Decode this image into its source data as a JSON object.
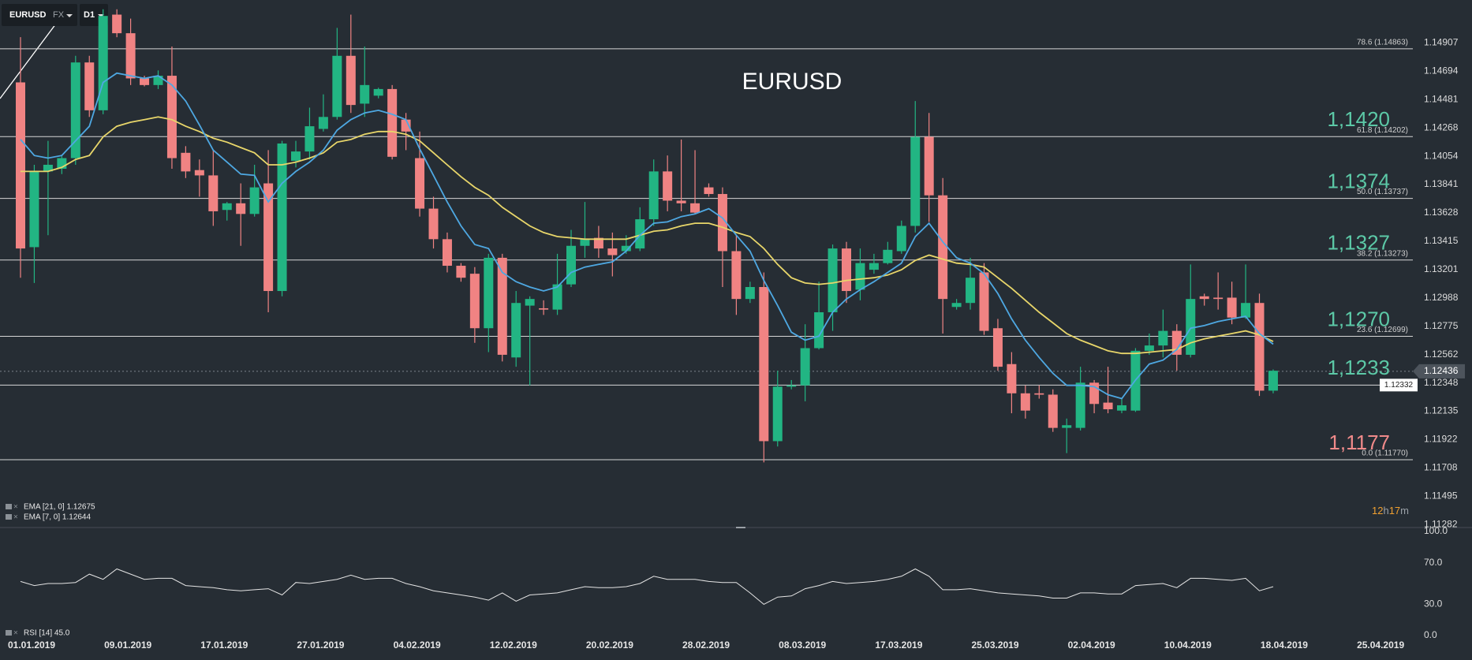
{
  "toolbar": {
    "symbol": "EURUSD",
    "market": "FX",
    "timeframe": "D1"
  },
  "chart_data": [
    {
      "type": "candlestick",
      "title": "EURUSD",
      "up_color": "#22b583",
      "down_color": "#f08383",
      "open": [
        1.1461,
        1.1337,
        1.1394,
        1.1396,
        1.1404,
        1.1476,
        1.144,
        1.1512,
        1.1498,
        1.1464,
        1.1459,
        1.1466,
        1.1408,
        1.1395,
        1.1391,
        1.1365,
        1.137,
        1.1362,
        1.1385,
        1.1304,
        1.1402,
        1.1409,
        1.1426,
        1.1435,
        1.1481,
        1.1445,
        1.1451,
        1.1456,
        1.1433,
        1.1404,
        1.1366,
        1.1343,
        1.1323,
        1.1317,
        1.1276,
        1.1329,
        1.1254,
        1.1293,
        1.1291,
        1.129,
        1.1309,
        1.1338,
        1.1344,
        1.1336,
        1.1334,
        1.1336,
        1.1358,
        1.1394,
        1.1372,
        1.137,
        1.1382,
        1.1377,
        1.1334,
        1.1298,
        1.1307,
        1.1191,
        1.1232,
        1.1233,
        1.1261,
        1.1288,
        1.1336,
        1.1305,
        1.132,
        1.1325,
        1.1334,
        1.1353,
        1.142,
        1.1376,
        1.1292,
        1.1295,
        1.1318,
        1.1276,
        1.1249,
        1.1227,
        1.1227,
        1.1226,
        1.1201,
        1.1201,
        1.1235,
        1.122,
        1.1214,
        1.1214,
        1.1259,
        1.1263,
        1.1274,
        1.1256,
        1.13,
        1.1299,
        1.1299,
        1.1284,
        1.1295,
        1.1229
      ],
      "high": [
        1.1495,
        1.1399,
        1.1417,
        1.1406,
        1.1481,
        1.1481,
        1.1516,
        1.1516,
        1.1509,
        1.1466,
        1.147,
        1.1488,
        1.1413,
        1.1403,
        1.141,
        1.1371,
        1.1385,
        1.1399,
        1.141,
        1.1417,
        1.1417,
        1.1442,
        1.1452,
        1.1502,
        1.1512,
        1.1488,
        1.1457,
        1.1459,
        1.1438,
        1.1424,
        1.1375,
        1.1348,
        1.1325,
        1.1322,
        1.1332,
        1.1332,
        1.1304,
        1.13,
        1.1297,
        1.1332,
        1.135,
        1.1371,
        1.1353,
        1.1348,
        1.1346,
        1.1367,
        1.1403,
        1.1406,
        1.1418,
        1.141,
        1.1385,
        1.1382,
        1.1346,
        1.1311,
        1.1318,
        1.1244,
        1.1237,
        1.1279,
        1.1311,
        1.1339,
        1.1341,
        1.1336,
        1.1332,
        1.1341,
        1.1357,
        1.1447,
        1.1438,
        1.1389,
        1.1298,
        1.1329,
        1.1325,
        1.1283,
        1.1258,
        1.1233,
        1.1233,
        1.123,
        1.1208,
        1.1247,
        1.1237,
        1.1247,
        1.1223,
        1.1261,
        1.1272,
        1.129,
        1.1279,
        1.1324,
        1.1302,
        1.1318,
        1.1311,
        1.1324,
        1.1302,
        1.1245
      ],
      "low": [
        1.1314,
        1.131,
        1.1346,
        1.1392,
        1.1399,
        1.1435,
        1.1437,
        1.1495,
        1.1459,
        1.1458,
        1.1456,
        1.1396,
        1.1389,
        1.1375,
        1.1353,
        1.1357,
        1.1338,
        1.136,
        1.1288,
        1.13,
        1.1397,
        1.1403,
        1.1424,
        1.1433,
        1.1438,
        1.1435,
        1.1449,
        1.1403,
        1.141,
        1.136,
        1.1336,
        1.1318,
        1.1311,
        1.1265,
        1.1258,
        1.1251,
        1.1247,
        1.1233,
        1.1286,
        1.1286,
        1.1307,
        1.1329,
        1.1329,
        1.1315,
        1.1332,
        1.1334,
        1.1353,
        1.1364,
        1.1364,
        1.1362,
        1.1375,
        1.1307,
        1.1286,
        1.1295,
        1.1175,
        1.1187,
        1.123,
        1.1221,
        1.126,
        1.1274,
        1.1295,
        1.1297,
        1.1317,
        1.1324,
        1.1332,
        1.1348,
        1.1356,
        1.1272,
        1.129,
        1.129,
        1.1271,
        1.1244,
        1.1212,
        1.1208,
        1.1223,
        1.1198,
        1.1182,
        1.1199,
        1.1212,
        1.1212,
        1.1212,
        1.1213,
        1.1256,
        1.1254,
        1.1244,
        1.1254,
        1.1293,
        1.129,
        1.1279,
        1.1283,
        1.1225,
        1.1227
      ],
      "close": [
        1.1336,
        1.1394,
        1.1399,
        1.1404,
        1.1476,
        1.144,
        1.1511,
        1.1498,
        1.1464,
        1.1459,
        1.1466,
        1.1404,
        1.1394,
        1.1391,
        1.1364,
        1.137,
        1.1362,
        1.1382,
        1.1304,
        1.1415,
        1.1409,
        1.1428,
        1.1435,
        1.1481,
        1.1444,
        1.1459,
        1.1456,
        1.1405,
        1.1424,
        1.1366,
        1.1343,
        1.1323,
        1.1314,
        1.1276,
        1.1329,
        1.1256,
        1.1295,
        1.1298,
        1.129,
        1.1309,
        1.1338,
        1.1343,
        1.1336,
        1.1331,
        1.1338,
        1.1358,
        1.1394,
        1.1372,
        1.137,
        1.1363,
        1.1377,
        1.1334,
        1.1298,
        1.1307,
        1.1191,
        1.1232,
        1.1233,
        1.1261,
        1.1288,
        1.1336,
        1.1304,
        1.1325,
        1.1325,
        1.1335,
        1.1353,
        1.142,
        1.1376,
        1.1298,
        1.1295,
        1.1314,
        1.1274,
        1.1247,
        1.1227,
        1.1214,
        1.1226,
        1.1201,
        1.1203,
        1.1235,
        1.1219,
        1.1215,
        1.1218,
        1.1259,
        1.1263,
        1.1274,
        1.1256,
        1.1298,
        1.1298,
        1.1298,
        1.1284,
        1.1295,
        1.1229,
        1.1244
      ],
      "series": [
        {
          "name": "EMA [21, 0] 1.12675",
          "color": "#e8d66a",
          "values": [
            1.1394,
            1.1394,
            1.1394,
            1.1397,
            1.1403,
            1.1406,
            1.142,
            1.1428,
            1.1431,
            1.1433,
            1.1435,
            1.1433,
            1.1428,
            1.1424,
            1.1419,
            1.1416,
            1.1412,
            1.1408,
            1.1399,
            1.1399,
            1.1401,
            1.1404,
            1.1408,
            1.1416,
            1.1418,
            1.1422,
            1.1424,
            1.1424,
            1.1422,
            1.1417,
            1.1408,
            1.1399,
            1.139,
            1.1382,
            1.1376,
            1.1367,
            1.136,
            1.1353,
            1.1348,
            1.1345,
            1.1344,
            1.1343,
            1.1343,
            1.1343,
            1.1343,
            1.1346,
            1.1349,
            1.135,
            1.1353,
            1.1355,
            1.1355,
            1.1352,
            1.1348,
            1.1345,
            1.1336,
            1.1324,
            1.1314,
            1.131,
            1.1309,
            1.131,
            1.1312,
            1.1313,
            1.1314,
            1.1316,
            1.132,
            1.1327,
            1.1331,
            1.1328,
            1.1325,
            1.1324,
            1.1322,
            1.1314,
            1.1306,
            1.1297,
            1.1288,
            1.128,
            1.1272,
            1.1267,
            1.1263,
            1.1259,
            1.1257,
            1.1257,
            1.1258,
            1.1259,
            1.126,
            1.1265,
            1.1268,
            1.127,
            1.1272,
            1.1274,
            1.1271,
            1.1266
          ]
        },
        {
          "name": "EMA [7, 0] 1.12644",
          "color": "#4ea8e2",
          "values": [
            1.1418,
            1.1406,
            1.1404,
            1.1406,
            1.1417,
            1.1428,
            1.1461,
            1.1468,
            1.1466,
            1.1464,
            1.1466,
            1.1459,
            1.1447,
            1.1429,
            1.141,
            1.1401,
            1.1392,
            1.1391,
            1.1371,
            1.1385,
            1.1394,
            1.1401,
            1.141,
            1.1425,
            1.1433,
            1.1438,
            1.144,
            1.1437,
            1.1433,
            1.1411,
            1.1391,
            1.1371,
            1.1353,
            1.1339,
            1.1336,
            1.1318,
            1.1311,
            1.1307,
            1.1304,
            1.1307,
            1.1318,
            1.1322,
            1.1324,
            1.1326,
            1.1334,
            1.1346,
            1.1355,
            1.1356,
            1.136,
            1.1362,
            1.1366,
            1.1359,
            1.1346,
            1.1334,
            1.1312,
            1.1293,
            1.1273,
            1.1267,
            1.127,
            1.1288,
            1.1298,
            1.1305,
            1.1311,
            1.1318,
            1.1325,
            1.1345,
            1.1355,
            1.1341,
            1.1329,
            1.1325,
            1.1317,
            1.1302,
            1.1283,
            1.1267,
            1.1254,
            1.1242,
            1.1233,
            1.1233,
            1.1232,
            1.1226,
            1.1223,
            1.1237,
            1.1249,
            1.1252,
            1.126,
            1.1276,
            1.1278,
            1.1281,
            1.1283,
            1.1285,
            1.1272,
            1.1264
          ]
        }
      ],
      "ylim": [
        1.1126,
        1.1523
      ],
      "yticks": [
        1.14907,
        1.14694,
        1.14481,
        1.14268,
        1.14054,
        1.13841,
        1.13628,
        1.13415,
        1.13201,
        1.12988,
        1.12775,
        1.12562,
        1.12348,
        1.12135,
        1.11922,
        1.11708,
        1.11495,
        1.11282
      ],
      "levels": [
        {
          "value": 1.14863,
          "label": "78.6 (1.14863)"
        },
        {
          "value": 1.14202,
          "label": "61.8 (1.14202)",
          "note": "1,1420",
          "note_color": "#5cc9a7"
        },
        {
          "value": 1.13737,
          "label": "50.0 (1.13737)",
          "note": "1,1374",
          "note_color": "#5cc9a7"
        },
        {
          "value": 1.13273,
          "label": "38.2 (1.13273)",
          "note": "1,1327",
          "note_color": "#5cc9a7"
        },
        {
          "value": 1.12699,
          "label": "23.6 (1.12699)",
          "note": "1,1270",
          "note_color": "#5cc9a7"
        },
        {
          "value": 1.12332,
          "boxed": true,
          "note": "1,1233",
          "note_color": "#5cc9a7"
        },
        {
          "value": 1.1177,
          "label": "0.0 (1.11770)",
          "note": "1,1177",
          "note_color": "#f08a8a"
        }
      ],
      "last_price": 1.12436,
      "x_labels": [
        "01.01.2019",
        "09.01.2019",
        "17.01.2019",
        "27.01.2019",
        "04.02.2019",
        "12.02.2019",
        "20.02.2019",
        "28.02.2019",
        "08.03.2019",
        "17.03.2019",
        "25.03.2019",
        "02.04.2019",
        "10.04.2019",
        "18.04.2019",
        "25.04.2019"
      ],
      "timer": [
        "12",
        "h",
        "17",
        "m"
      ]
    },
    {
      "type": "line",
      "name": "RSI [14] 45.0",
      "color": "#e4e4e4",
      "values": [
        52,
        48,
        50,
        50,
        51,
        59,
        54,
        64,
        59,
        54,
        55,
        55,
        48,
        47,
        46,
        44,
        43,
        44,
        45,
        39,
        51,
        50,
        52,
        54,
        58,
        54,
        55,
        55,
        50,
        47,
        43,
        41,
        39,
        37,
        34,
        41,
        33,
        39,
        40,
        41,
        44,
        47,
        46,
        46,
        47,
        50,
        57,
        54,
        54,
        54,
        52,
        51,
        51,
        41,
        30,
        37,
        38,
        45,
        48,
        52,
        50,
        51,
        52,
        54,
        57,
        64,
        57,
        44,
        44,
        45,
        43,
        41,
        40,
        39,
        38,
        36,
        36,
        41,
        41,
        40,
        40,
        48,
        49,
        50,
        46,
        55,
        55,
        54,
        53,
        55,
        43,
        47
      ],
      "ylim": [
        0,
        100
      ],
      "yticks": [
        {
          "value": 100,
          "label": "100.0"
        },
        {
          "value": 70,
          "label": "70.0"
        },
        {
          "value": 30,
          "label": "30.0"
        },
        {
          "value": 0,
          "label": "0.0"
        }
      ]
    }
  ]
}
